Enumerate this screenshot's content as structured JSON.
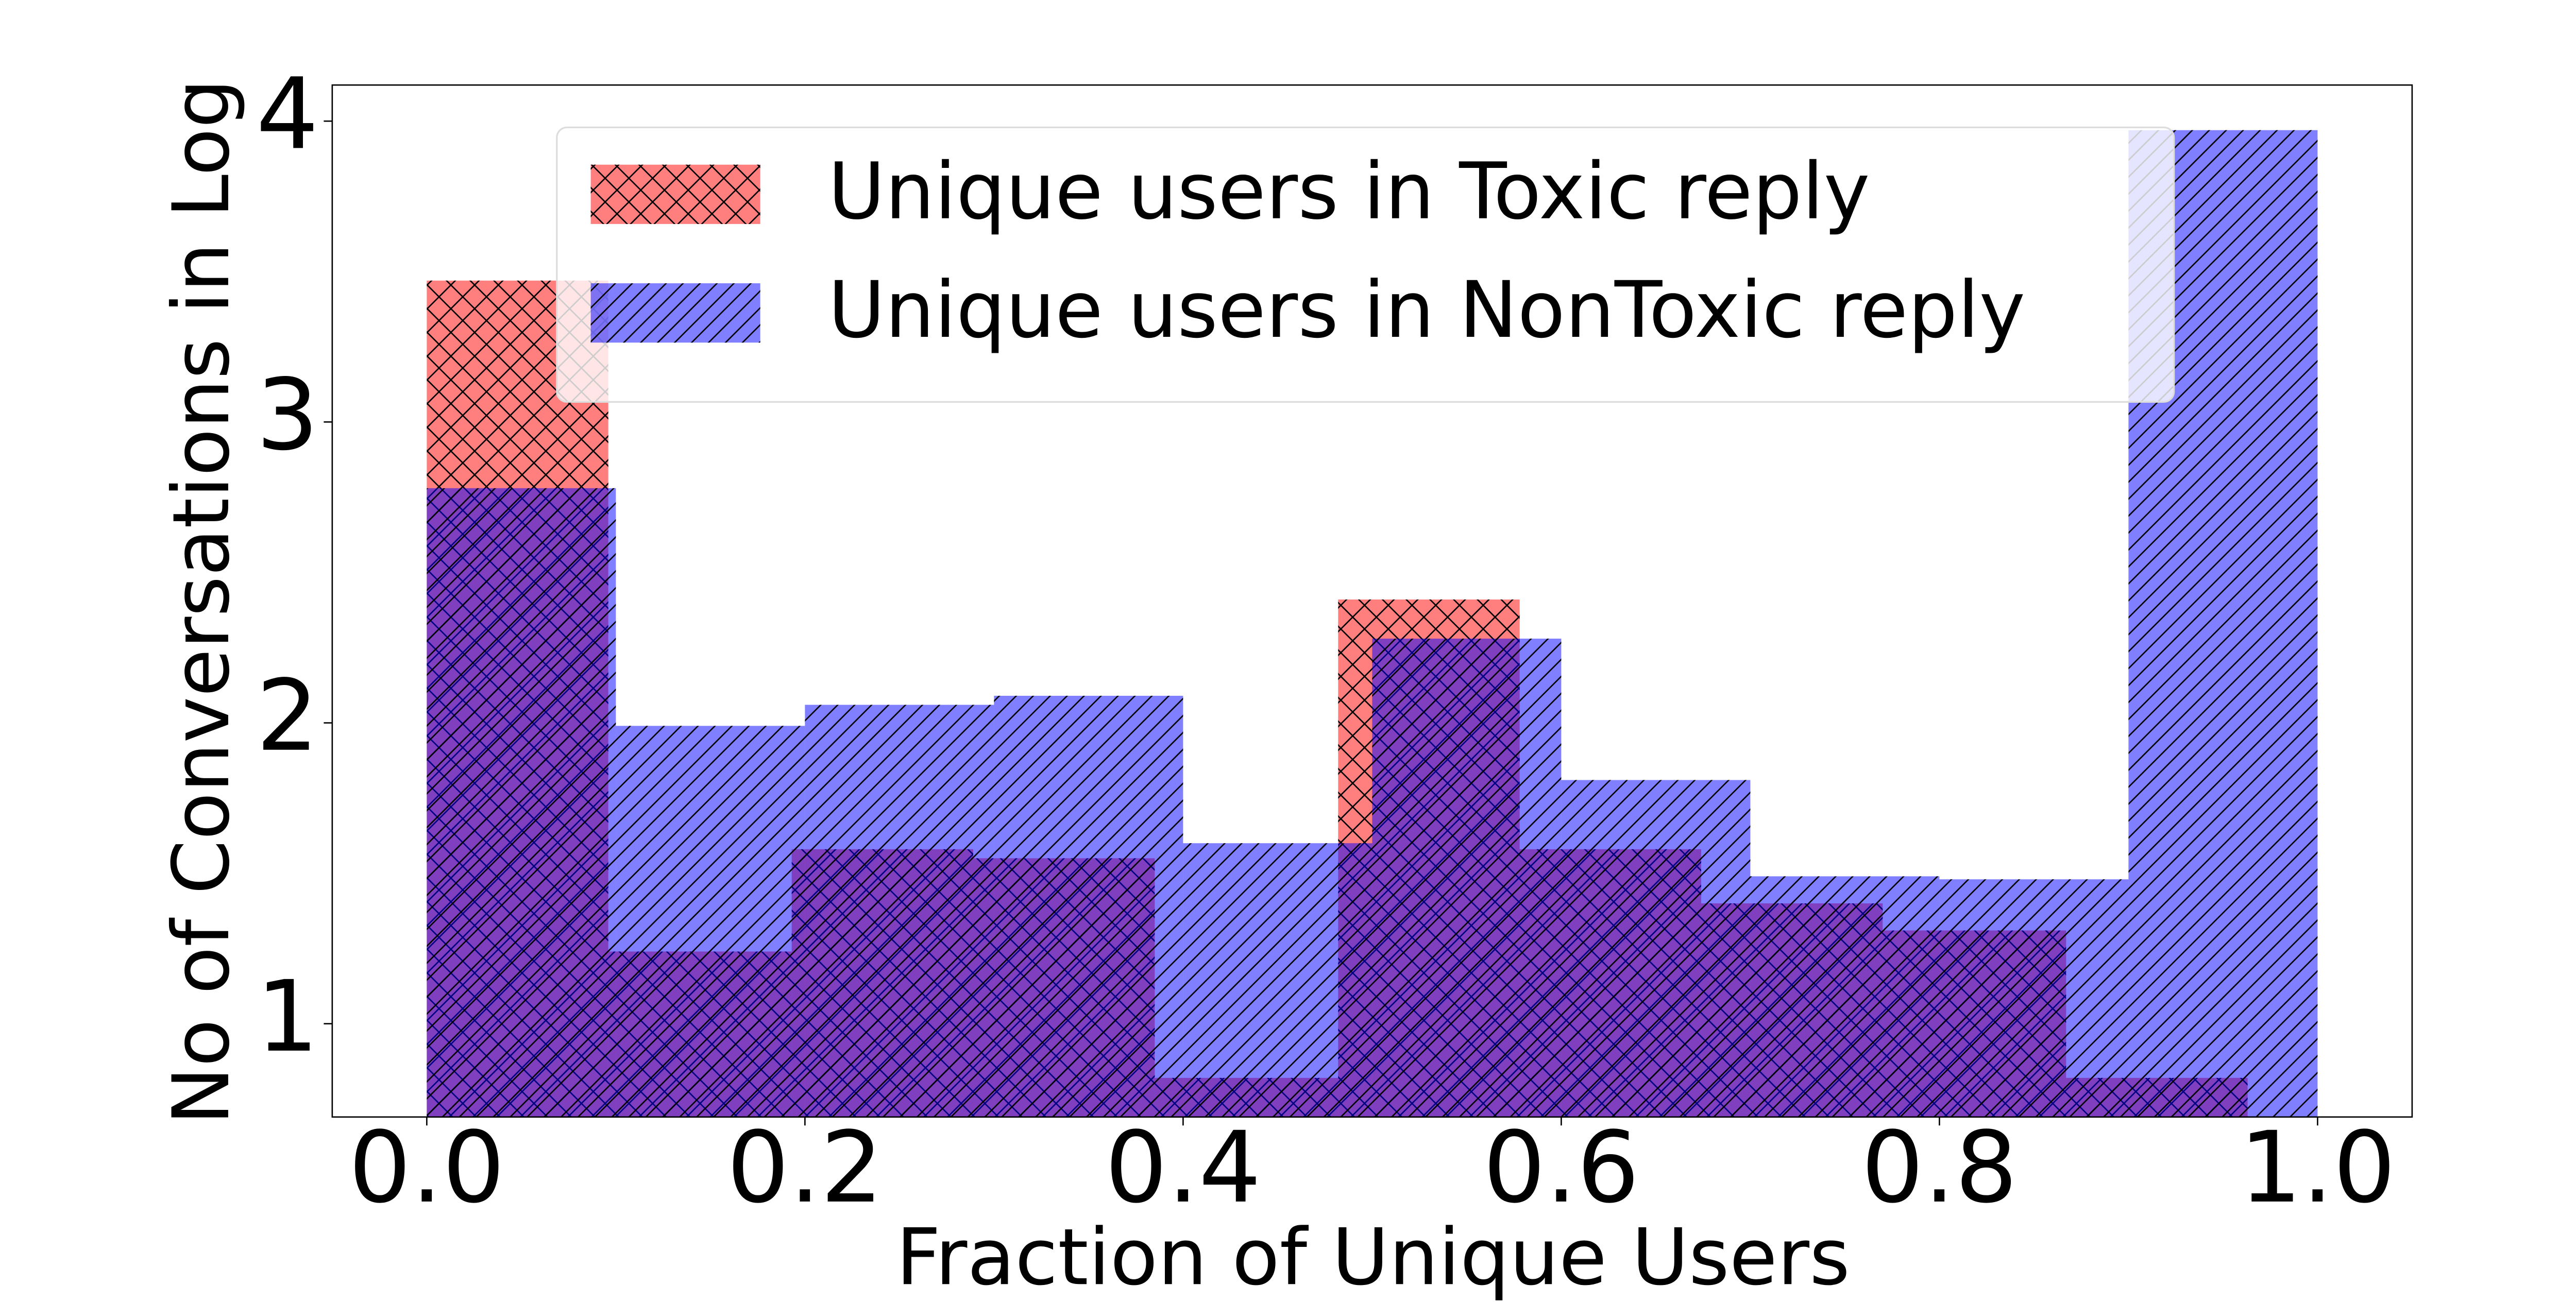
{
  "chart_data": {
    "type": "histogram",
    "xlabel": "Fraction of Unique Users",
    "ylabel": "No of Conversations in Log",
    "xlim": [
      -0.05,
      1.05
    ],
    "ylim": [
      0.69,
      4.12
    ],
    "xticks": [
      {
        "value": 0,
        "label": "0.0"
      },
      {
        "value": 0.2,
        "label": "0.2"
      },
      {
        "value": 0.4,
        "label": "0.4"
      },
      {
        "value": 0.6,
        "label": "0.6"
      },
      {
        "value": 0.8,
        "label": "0.8"
      },
      {
        "value": 1,
        "label": "1.0"
      }
    ],
    "yticks": [
      1,
      2,
      3,
      4
    ],
    "legend": "upper center",
    "alpha": 0.5,
    "series": [
      {
        "name": "Unique users in Toxic reply",
        "color": "#ff0000",
        "hatch": "xx",
        "bins": [
          0,
          0.096,
          0.193,
          0.289,
          0.385,
          0.482,
          0.578,
          0.674,
          0.77,
          0.867,
          0.963
        ],
        "values": [
          3.47,
          1.24,
          1.58,
          1.55,
          0.82,
          2.41,
          1.58,
          1.4,
          1.31,
          0.82
        ]
      },
      {
        "name": "Unique users in NonToxic reply",
        "color": "#0000ff",
        "hatch": "///",
        "bins": [
          0,
          0.1,
          0.2,
          0.3,
          0.4,
          0.5,
          0.6,
          0.7,
          0.8,
          0.9,
          1.0
        ],
        "values": [
          2.78,
          1.99,
          2.06,
          2.09,
          1.6,
          2.28,
          1.81,
          1.49,
          1.48,
          3.97
        ]
      }
    ]
  }
}
